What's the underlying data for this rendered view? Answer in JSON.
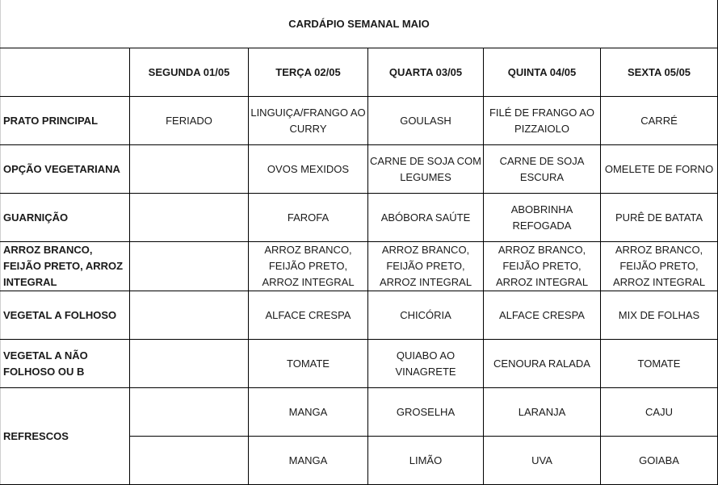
{
  "title": "CARDÁPIO SEMANAL MAIO",
  "days": [
    "SEGUNDA   01/05",
    "TERÇA  02/05",
    "QUARTA 03/05",
    "QUINTA 04/05",
    "SEXTA 05/05"
  ],
  "rows": [
    {
      "label": "PRATO PRINCIPAL",
      "cells": [
        "FERIADO",
        "LINGUIÇA/FRANGO AO CURRY",
        "GOULASH",
        "FILÉ DE FRANGO AO PIZZAIOLO",
        "CARRÉ"
      ]
    },
    {
      "label": "OPÇÃO VEGETARIANA",
      "cells": [
        "",
        "OVOS MEXIDOS",
        "CARNE DE SOJA COM LEGUMES",
        "CARNE DE SOJA ESCURA",
        "OMELETE DE FORNO"
      ]
    },
    {
      "label": "GUARNIÇÃO",
      "cells": [
        "",
        "FAROFA",
        "ABÓBORA SAÚTE",
        "ABOBRINHA REFOGADA",
        "PURÊ DE BATATA"
      ]
    },
    {
      "label": "ARROZ BRANCO, FEIJÃO PRETO, ARROZ INTEGRAL",
      "cells": [
        "",
        "ARROZ BRANCO, FEIJÃO PRETO, ARROZ INTEGRAL",
        "ARROZ BRANCO, FEIJÃO PRETO, ARROZ INTEGRAL",
        "ARROZ BRANCO, FEIJÃO PRETO, ARROZ INTEGRAL",
        "ARROZ BRANCO, FEIJÃO PRETO, ARROZ INTEGRAL"
      ]
    },
    {
      "label": "VEGETAL A FOLHOSO",
      "cells": [
        "",
        "ALFACE CRESPA",
        "CHICÓRIA",
        "ALFACE  CRESPA",
        "MIX DE FOLHAS"
      ]
    },
    {
      "label": "VEGETAL A NÃO FOLHOSO OU B",
      "cells": [
        "",
        "TOMATE",
        "QUIABO AO VINAGRETE",
        "CENOURA RALADA",
        "TOMATE"
      ]
    }
  ],
  "refrescos": {
    "label": "REFRESCOS",
    "rows": [
      [
        "",
        "MANGA",
        "GROSELHA",
        "LARANJA",
        "CAJU"
      ],
      [
        "",
        "MANGA",
        "LIMÃO",
        "UVA",
        "GOIABA"
      ]
    ]
  }
}
